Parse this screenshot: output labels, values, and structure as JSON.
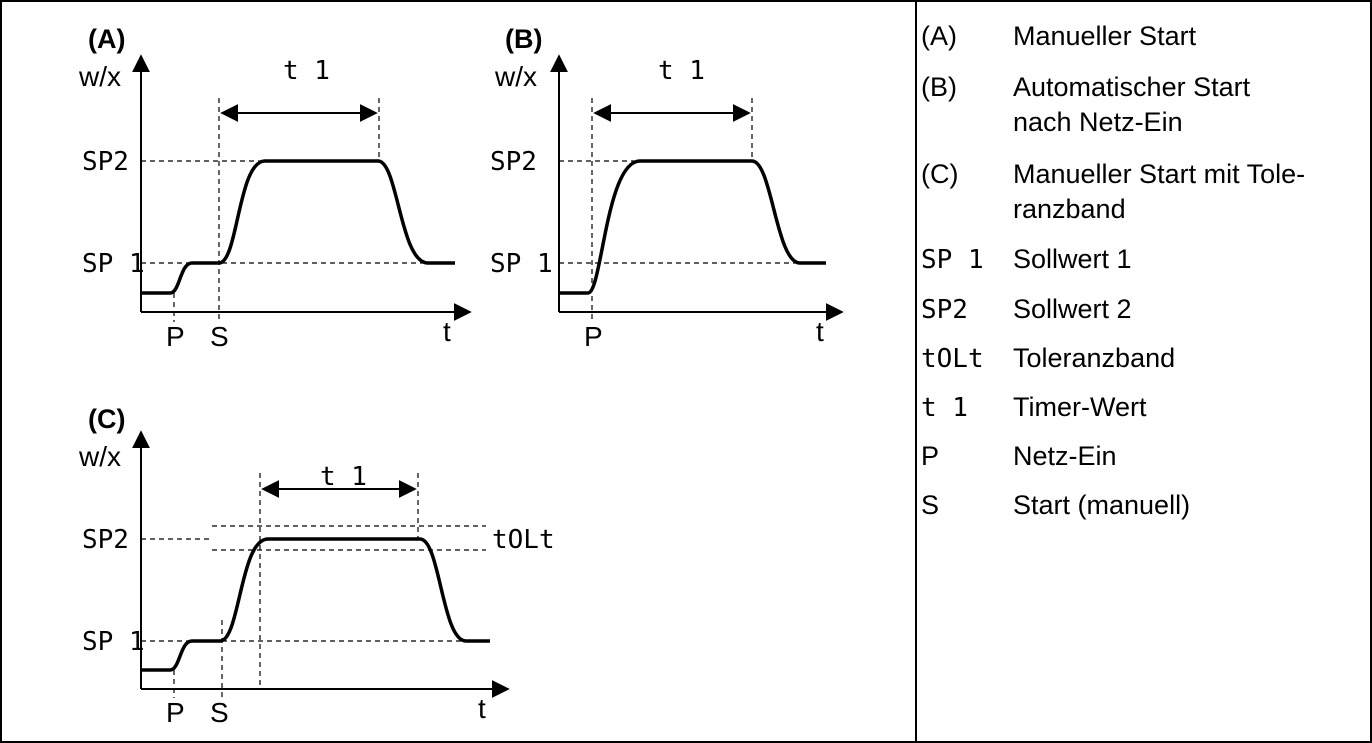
{
  "diagram": {
    "panels": [
      {
        "id": "A",
        "title": "(A)",
        "ylabel": "w/x",
        "xlabel": "t",
        "sp1_label": "SP 1",
        "sp2_label": "SP2",
        "timer_label": "t 1",
        "markers": [
          "P",
          "S"
        ]
      },
      {
        "id": "B",
        "title": "(B)",
        "ylabel": "w/x",
        "xlabel": "t",
        "sp1_label": "SP 1",
        "sp2_label": "SP2",
        "timer_label": "t 1",
        "markers": [
          "P"
        ]
      },
      {
        "id": "C",
        "title": "(C)",
        "ylabel": "w/x",
        "xlabel": "t",
        "sp1_label": "SP 1",
        "sp2_label": "SP2",
        "timer_label": "t 1",
        "tolerance_label": "tOLt",
        "markers": [
          "P",
          "S"
        ]
      }
    ]
  },
  "legend": [
    {
      "key": "(A)",
      "text": "Manueller Start"
    },
    {
      "key": "(B)",
      "text": "Automatischer Start",
      "text2": "nach Netz-Ein"
    },
    {
      "key": "(C)",
      "text": "Manueller Start mit Tole-",
      "text2": "ranzband"
    },
    {
      "key": "SP 1",
      "text": "Sollwert 1"
    },
    {
      "key": "SP2",
      "text": "Sollwert 2"
    },
    {
      "key": "tOLt",
      "text": "Toleranzband"
    },
    {
      "key": "t 1",
      "text": "Timer-Wert"
    },
    {
      "key": "P",
      "text": "Netz-Ein"
    },
    {
      "key": "S",
      "text": "Start (manuell)"
    }
  ]
}
